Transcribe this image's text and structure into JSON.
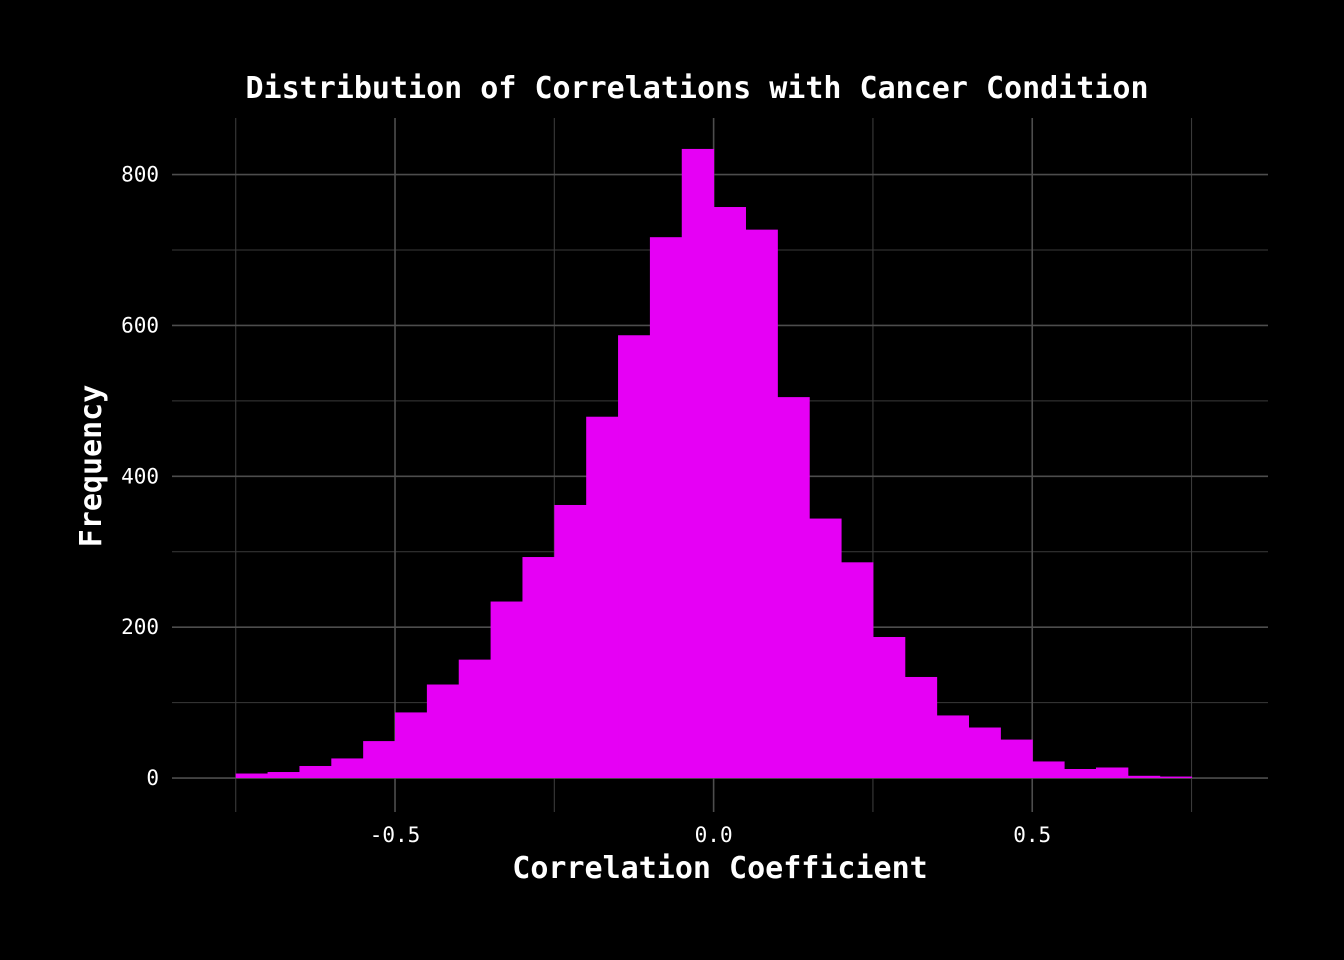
{
  "chart_data": {
    "type": "bar",
    "title": "Distribution of Correlations with Cancer Condition",
    "xlabel": "Correlation Coefficient",
    "ylabel": "Frequency",
    "bar_color": "#e600f5",
    "background": "#000000",
    "grid": true,
    "xlim": [
      -0.85,
      0.87
    ],
    "ylim": [
      -45,
      875
    ],
    "bin_width": 0.05,
    "bin_start": -0.75,
    "x_ticks": [
      -0.5,
      0.0,
      0.5
    ],
    "x_tick_labels": [
      "-0.5",
      "0.0",
      "0.5"
    ],
    "y_ticks": [
      0,
      200,
      400,
      600,
      800
    ],
    "y_tick_labels": [
      "0",
      "200",
      "400",
      "600",
      "800"
    ],
    "values": [
      6,
      8,
      16,
      26,
      49,
      87,
      124,
      157,
      234,
      293,
      362,
      479,
      587,
      717,
      834,
      757,
      727,
      505,
      344,
      286,
      187,
      134,
      83,
      67,
      51,
      22,
      12,
      14,
      3,
      2
    ]
  }
}
